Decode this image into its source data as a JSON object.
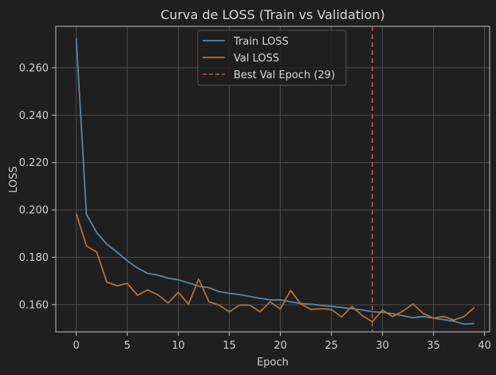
{
  "chart_data": {
    "type": "line",
    "title": "Curva de LOSS (Train vs Validation)",
    "xlabel": "Epoch",
    "ylabel": "LOSS",
    "xlim": [
      -2,
      40.5
    ],
    "ylim": [
      0.1485,
      0.2775
    ],
    "xticks": [
      0,
      5,
      10,
      15,
      20,
      25,
      30,
      35,
      40
    ],
    "yticks": [
      0.16,
      0.18,
      0.2,
      0.22,
      0.24,
      0.26
    ],
    "ytick_labels": [
      "0.160",
      "0.180",
      "0.200",
      "0.220",
      "0.240",
      "0.260"
    ],
    "grid": true,
    "legend_position": "top-center",
    "x": [
      0,
      1,
      2,
      3,
      4,
      5,
      6,
      7,
      8,
      9,
      10,
      11,
      12,
      13,
      14,
      15,
      16,
      17,
      18,
      19,
      20,
      21,
      22,
      23,
      24,
      25,
      26,
      27,
      28,
      29,
      30,
      31,
      32,
      33,
      34,
      35,
      36,
      37,
      38,
      39
    ],
    "series": [
      {
        "name": "Train LOSS",
        "color": "#5a84a8",
        "style": "solid",
        "values": [
          0.2725,
          0.1982,
          0.1905,
          0.1855,
          0.1822,
          0.1785,
          0.1755,
          0.1732,
          0.1725,
          0.1712,
          0.1705,
          0.1692,
          0.1678,
          0.1672,
          0.1655,
          0.1648,
          0.1643,
          0.1635,
          0.1627,
          0.162,
          0.162,
          0.1612,
          0.1605,
          0.1602,
          0.1597,
          0.1593,
          0.1588,
          0.1583,
          0.1578,
          0.157,
          0.1568,
          0.1562,
          0.1553,
          0.1545,
          0.155,
          0.1543,
          0.1537,
          0.153,
          0.1518,
          0.152
        ]
      },
      {
        "name": "Val LOSS",
        "color": "#b0703a",
        "style": "solid",
        "values": [
          0.1985,
          0.1848,
          0.1822,
          0.1695,
          0.168,
          0.169,
          0.164,
          0.1662,
          0.1642,
          0.1607,
          0.1652,
          0.1602,
          0.1708,
          0.1612,
          0.1598,
          0.157,
          0.1598,
          0.1598,
          0.157,
          0.1612,
          0.1582,
          0.166,
          0.1603,
          0.158,
          0.1583,
          0.158,
          0.1548,
          0.1593,
          0.1555,
          0.1528,
          0.1577,
          0.155,
          0.1573,
          0.1603,
          0.1563,
          0.1543,
          0.155,
          0.1535,
          0.155,
          0.1588
        ]
      }
    ],
    "reference_line": {
      "name": "Best Val Epoch (29)",
      "x": 29,
      "color": "#c0504d",
      "style": "dashed"
    }
  }
}
